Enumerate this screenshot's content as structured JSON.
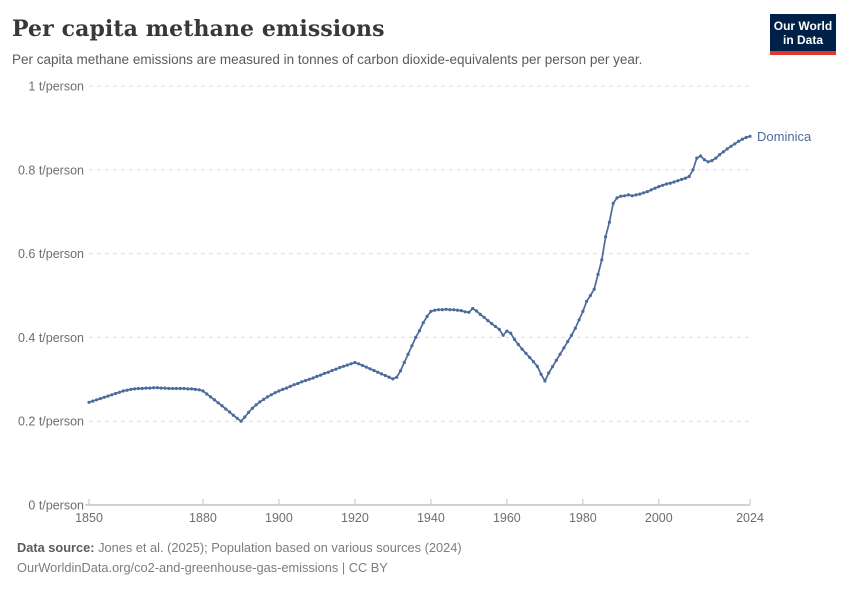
{
  "header": {
    "title": "Per capita methane emissions",
    "subtitle": "Per capita methane emissions are measured in tonnes of carbon dioxide-equivalents per person per year."
  },
  "logo": {
    "line1": "Our World",
    "line2": "in Data",
    "bg_color": "#002147",
    "accent_color": "#e0382e"
  },
  "footer": {
    "source_label": "Data source:",
    "source_text": " Jones et al. (2025); Population based on various sources (2024)",
    "link_line": "OurWorldinData.org/co2-and-greenhouse-gas-emissions | CC BY"
  },
  "chart_data": {
    "type": "line",
    "title": "Per capita methane emissions",
    "unit": "t/person",
    "entity_label": "Dominica",
    "line_color": "#4C6A9C",
    "grid": "horizontal-dashed",
    "legend_position": "end-of-line-label",
    "xlim": [
      1850,
      2024
    ],
    "ylim": [
      0,
      1
    ],
    "x_ticks": [
      {
        "value": 1850,
        "label": "1850"
      },
      {
        "value": 1880,
        "label": "1880"
      },
      {
        "value": 1900,
        "label": "1900"
      },
      {
        "value": 1920,
        "label": "1920"
      },
      {
        "value": 1940,
        "label": "1940"
      },
      {
        "value": 1960,
        "label": "1960"
      },
      {
        "value": 1980,
        "label": "1980"
      },
      {
        "value": 2000,
        "label": "2000"
      },
      {
        "value": 2024,
        "label": "2024"
      }
    ],
    "y_ticks": [
      {
        "value": 0,
        "label": "0 t/person"
      },
      {
        "value": 0.2,
        "label": "0.2 t/person"
      },
      {
        "value": 0.4,
        "label": "0.4 t/person"
      },
      {
        "value": 0.6,
        "label": "0.6 t/person"
      },
      {
        "value": 0.8,
        "label": "0.8 t/person"
      },
      {
        "value": 1,
        "label": "1 t/person"
      }
    ],
    "x": [
      1850,
      1851,
      1852,
      1853,
      1854,
      1855,
      1856,
      1857,
      1858,
      1859,
      1860,
      1861,
      1862,
      1863,
      1864,
      1865,
      1866,
      1867,
      1868,
      1869,
      1870,
      1871,
      1872,
      1873,
      1874,
      1875,
      1876,
      1877,
      1878,
      1879,
      1880,
      1881,
      1882,
      1883,
      1884,
      1885,
      1886,
      1887,
      1888,
      1889,
      1890,
      1891,
      1892,
      1893,
      1894,
      1895,
      1896,
      1897,
      1898,
      1899,
      1900,
      1901,
      1902,
      1903,
      1904,
      1905,
      1906,
      1907,
      1908,
      1909,
      1910,
      1911,
      1912,
      1913,
      1914,
      1915,
      1916,
      1917,
      1918,
      1919,
      1920,
      1921,
      1922,
      1923,
      1924,
      1925,
      1926,
      1927,
      1928,
      1929,
      1930,
      1931,
      1932,
      1933,
      1934,
      1935,
      1936,
      1937,
      1938,
      1939,
      1940,
      1941,
      1942,
      1943,
      1944,
      1945,
      1946,
      1947,
      1948,
      1949,
      1950,
      1951,
      1952,
      1953,
      1954,
      1955,
      1956,
      1957,
      1958,
      1959,
      1960,
      1961,
      1962,
      1963,
      1964,
      1965,
      1966,
      1967,
      1968,
      1969,
      1970,
      1971,
      1972,
      1973,
      1974,
      1975,
      1976,
      1977,
      1978,
      1979,
      1980,
      1981,
      1982,
      1983,
      1984,
      1985,
      1986,
      1987,
      1988,
      1989,
      1990,
      1991,
      1992,
      1993,
      1994,
      1995,
      1996,
      1997,
      1998,
      1999,
      2000,
      2001,
      2002,
      2003,
      2004,
      2005,
      2006,
      2007,
      2008,
      2009,
      2010,
      2011,
      2012,
      2013,
      2014,
      2015,
      2016,
      2017,
      2018,
      2019,
      2020,
      2021,
      2022,
      2023,
      2024
    ],
    "series": [
      {
        "name": "Dominica",
        "values": [
          0.245,
          0.248,
          0.251,
          0.254,
          0.257,
          0.26,
          0.263,
          0.266,
          0.269,
          0.272,
          0.274,
          0.276,
          0.277,
          0.278,
          0.278,
          0.279,
          0.279,
          0.28,
          0.28,
          0.279,
          0.279,
          0.278,
          0.278,
          0.278,
          0.278,
          0.278,
          0.277,
          0.277,
          0.276,
          0.275,
          0.272,
          0.265,
          0.258,
          0.251,
          0.244,
          0.237,
          0.229,
          0.222,
          0.214,
          0.207,
          0.2,
          0.21,
          0.221,
          0.231,
          0.239,
          0.246,
          0.252,
          0.258,
          0.263,
          0.268,
          0.272,
          0.276,
          0.279,
          0.283,
          0.287,
          0.29,
          0.294,
          0.297,
          0.3,
          0.303,
          0.307,
          0.31,
          0.314,
          0.317,
          0.321,
          0.324,
          0.328,
          0.331,
          0.334,
          0.337,
          0.34,
          0.337,
          0.333,
          0.329,
          0.325,
          0.321,
          0.317,
          0.313,
          0.309,
          0.305,
          0.301,
          0.305,
          0.32,
          0.34,
          0.36,
          0.38,
          0.4,
          0.416,
          0.435,
          0.45,
          0.462,
          0.465,
          0.466,
          0.466,
          0.467,
          0.466,
          0.466,
          0.465,
          0.464,
          0.461,
          0.46,
          0.469,
          0.463,
          0.455,
          0.448,
          0.44,
          0.433,
          0.426,
          0.419,
          0.405,
          0.415,
          0.41,
          0.395,
          0.383,
          0.372,
          0.362,
          0.352,
          0.342,
          0.331,
          0.312,
          0.296,
          0.315,
          0.33,
          0.345,
          0.36,
          0.375,
          0.39,
          0.405,
          0.422,
          0.442,
          0.462,
          0.486,
          0.5,
          0.515,
          0.55,
          0.585,
          0.64,
          0.675,
          0.72,
          0.733,
          0.737,
          0.738,
          0.74,
          0.738,
          0.74,
          0.742,
          0.745,
          0.748,
          0.752,
          0.756,
          0.76,
          0.763,
          0.766,
          0.768,
          0.771,
          0.774,
          0.777,
          0.78,
          0.784,
          0.8,
          0.828,
          0.833,
          0.824,
          0.819,
          0.822,
          0.828,
          0.836,
          0.843,
          0.85,
          0.856,
          0.862,
          0.868,
          0.873,
          0.877,
          0.88
        ]
      }
    ]
  }
}
